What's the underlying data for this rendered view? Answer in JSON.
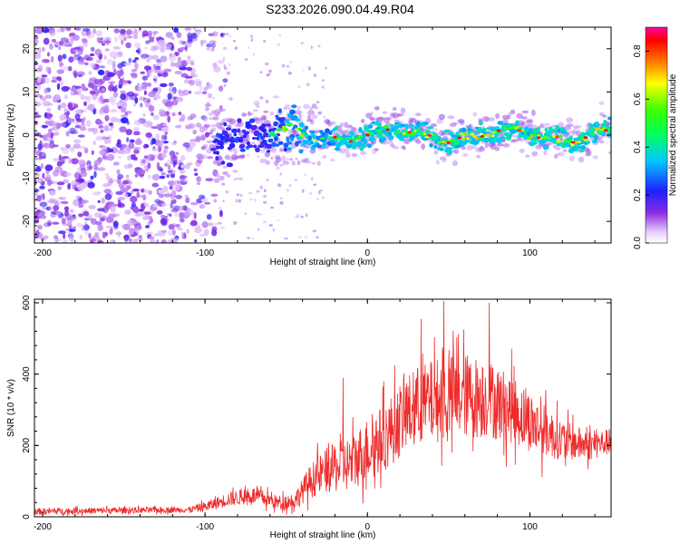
{
  "title": "S233.2026.090.04.49.R04",
  "chart_data": [
    {
      "id": "spectrogram",
      "type": "heatmap",
      "title": "S233.2026.090.04.49.R04",
      "xlabel": "Height of straight line (km)",
      "ylabel": "Frequency (Hz)",
      "xlim": [
        -205,
        150
      ],
      "ylim": [
        -25,
        25
      ],
      "xticks": [
        -200,
        -100,
        0,
        100
      ],
      "yticks": [
        -20,
        -10,
        0,
        10,
        20
      ],
      "colorbar": {
        "label": "Normalized spectral amplitude",
        "range": [
          0.0,
          0.9
        ],
        "ticks": [
          0.0,
          0.2,
          0.4,
          0.6,
          0.8
        ],
        "colormap": "rainbow (white-violet-blue-cyan-green-yellow-red-magenta)"
      },
      "features": {
        "noise_region_km": [
          -205,
          -95
        ],
        "noise_frequency_band_hz": [
          -25,
          25
        ],
        "signal_band_start_km": -95,
        "signal_center_frequency_hz": 0,
        "strongest_amplitude_near_km": [
          20,
          150
        ]
      }
    },
    {
      "id": "snr",
      "type": "line",
      "xlabel": "Height of straight line (km)",
      "ylabel": "SNR (10 * v/v)",
      "xlim": [
        -205,
        150
      ],
      "ylim": [
        0,
        610
      ],
      "xticks": [
        -200,
        -100,
        0,
        100
      ],
      "yticks": [
        0,
        200,
        400,
        600
      ],
      "series": [
        {
          "name": "SNR",
          "color": "#ee2a2a",
          "envelope_x": [
            -205,
            -110,
            -100,
            -85,
            -70,
            -55,
            -45,
            -35,
            -25,
            -10,
            0,
            10,
            20,
            30,
            45,
            60,
            75,
            90,
            105,
            120,
            135,
            150
          ],
          "envelope_y": [
            15,
            20,
            28,
            50,
            60,
            40,
            45,
            100,
            130,
            150,
            190,
            220,
            270,
            310,
            330,
            340,
            330,
            300,
            250,
            215,
            200,
            210
          ],
          "amplitude_y": [
            12,
            10,
            18,
            25,
            30,
            25,
            30,
            60,
            80,
            100,
            110,
            120,
            130,
            140,
            150,
            150,
            140,
            120,
            100,
            70,
            55,
            45
          ],
          "peak_values": [
            {
              "x": 47,
              "y": 605
            },
            {
              "x": 75,
              "y": 600
            },
            {
              "x": 33,
              "y": 555
            },
            {
              "x": -15,
              "y": 390
            }
          ]
        }
      ]
    }
  ]
}
